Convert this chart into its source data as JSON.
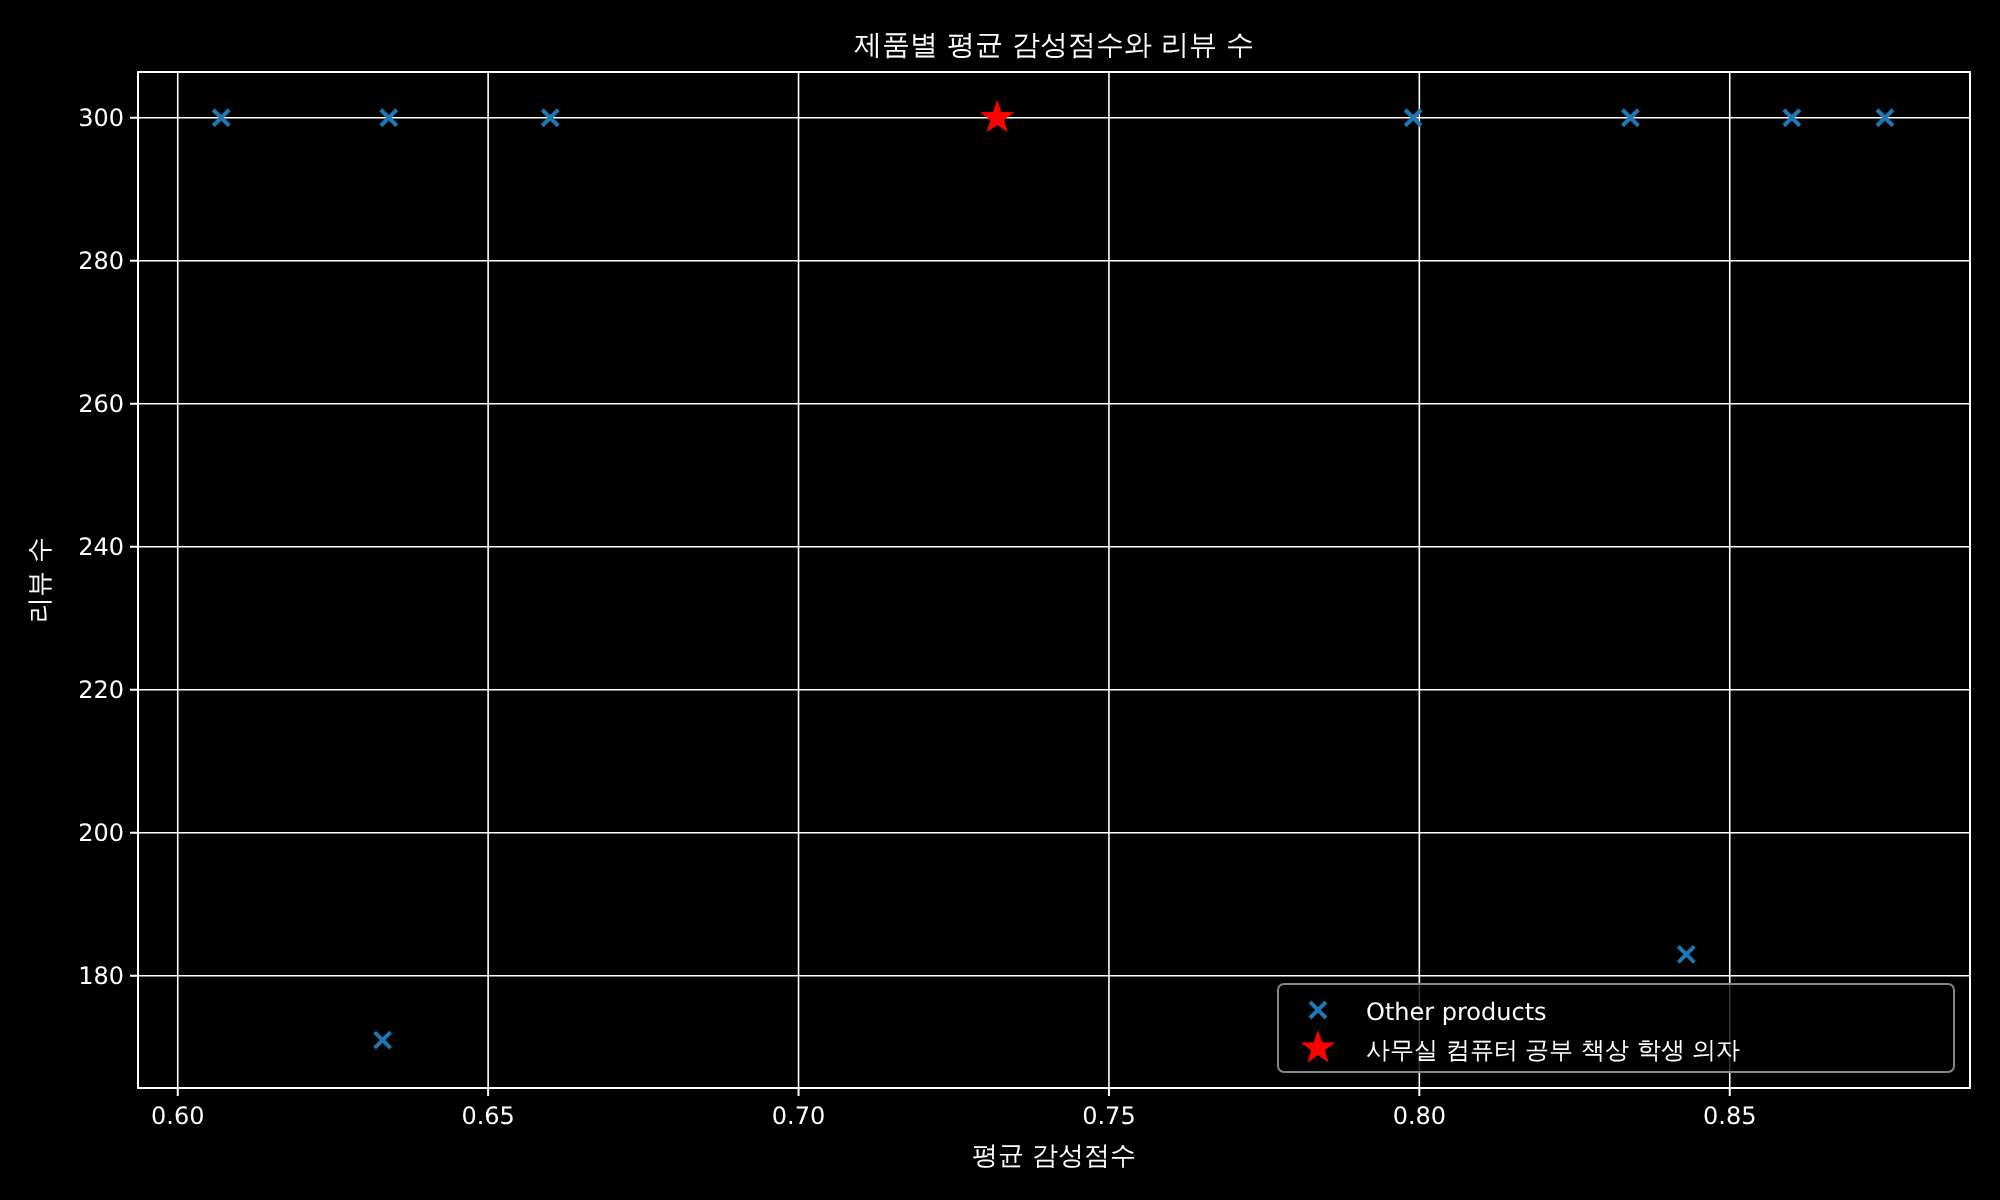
{
  "chart_data": {
    "type": "scatter",
    "title": "제품별 평균 감성점수와 리뷰 수",
    "xlabel": "평균 감성점수",
    "ylabel": "리뷰 수",
    "xlim": [
      0.5936,
      0.8887
    ],
    "xticks": [
      {
        "value": 0.6,
        "label": "0.60"
      },
      {
        "value": 0.65,
        "label": "0.65"
      },
      {
        "value": 0.7,
        "label": "0.70"
      },
      {
        "value": 0.75,
        "label": "0.75"
      },
      {
        "value": 0.8,
        "label": "0.80"
      },
      {
        "value": 0.85,
        "label": "0.85"
      }
    ],
    "ylim": [
      164.3,
      306.4
    ],
    "yticks": [
      180,
      200,
      220,
      240,
      260,
      280,
      300
    ],
    "grid": true,
    "legend": "bottom right",
    "series": [
      {
        "name": "Other products",
        "color": "#1f77b4",
        "marker": "cross",
        "x": [
          0.607,
          0.634,
          0.66,
          0.633,
          0.799,
          0.834,
          0.843,
          0.86,
          0.875
        ],
        "values": [
          300,
          300,
          300,
          171,
          300,
          300,
          183,
          300,
          300
        ]
      },
      {
        "name": "사무실 컴퓨터 공부 책상 학생 의자",
        "color": "#ff0000",
        "marker": "star",
        "x": [
          0.732
        ],
        "values": [
          300
        ]
      }
    ]
  }
}
